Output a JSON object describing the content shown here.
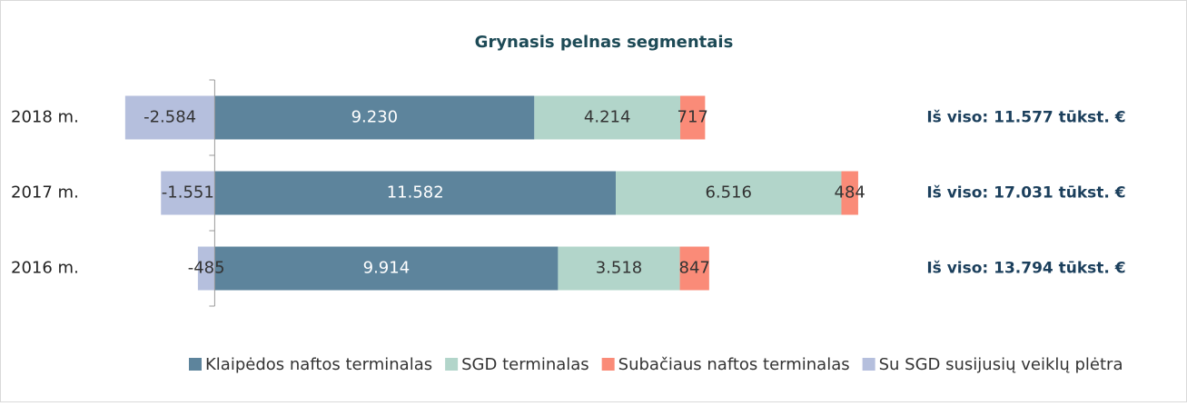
{
  "chart_data": {
    "type": "stacked_barh",
    "title": "Grynasis pelnas segmentais",
    "categories": [
      "2018 m.",
      "2017 m.",
      "2016 m."
    ],
    "series": [
      {
        "name": "Klaipėdos naftos terminalas",
        "color": "#5d849c",
        "values": [
          9230,
          11582,
          9914
        ],
        "value_labels": [
          "9.230",
          "11.582",
          "9.914"
        ]
      },
      {
        "name": "SGD terminalas",
        "color": "#b2d5ca",
        "values": [
          4214,
          6516,
          3518
        ],
        "value_labels": [
          "4.214",
          "6.516",
          "3.518"
        ]
      },
      {
        "name": "Subačiaus naftos terminalas",
        "color": "#fa8b78",
        "values": [
          717,
          484,
          847
        ]
      },
      {
        "name": "Su SGD susijusių veiklų plėtra",
        "color": "#b5bfdd",
        "values": [
          -2584,
          -1551,
          -485
        ],
        "value_labels": [
          "-2.584",
          "-1.551",
          "-485"
        ]
      }
    ],
    "annotations": [
      "Iš viso: 11.577 tūkst. €",
      "Iš viso: 17.031 tūkst. €",
      "Iš viso: 13.794 tūkst. €"
    ],
    "xlim": [
      -3000,
      20000
    ],
    "legend": "bottom"
  }
}
